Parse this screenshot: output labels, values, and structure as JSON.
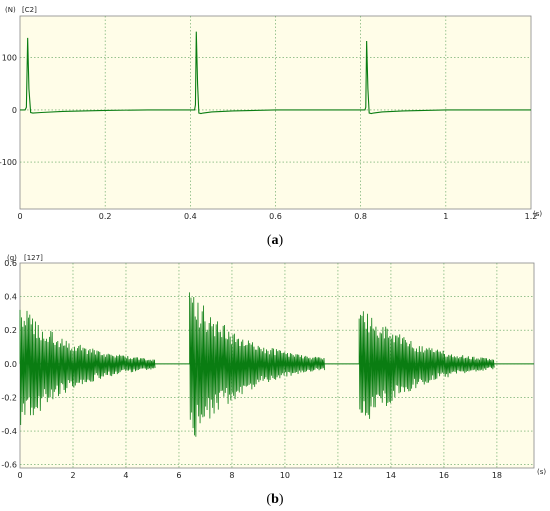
{
  "colors": {
    "plot_bg": "#fffde8",
    "series": "#0a7d12",
    "grid": "#5aa05a",
    "axis": "#888888"
  },
  "chart_data": [
    {
      "type": "line",
      "panel_caption_open": "(",
      "panel_caption_letter": "a",
      "panel_caption_close": ")",
      "y_unit": "(N)",
      "channel": "[C2]",
      "x_unit": "(s)",
      "xlim": [
        0,
        1.2
      ],
      "ylim": [
        -190,
        180
      ],
      "grid": true,
      "x_ticks": [
        0,
        0.2,
        0.4,
        0.6,
        0.8,
        1,
        1.2
      ],
      "x_tick_labels": [
        "0",
        "0.2",
        "0.4",
        "0.6",
        "0.8",
        "1",
        "1.2"
      ],
      "y_ticks": [
        100,
        0,
        -100
      ],
      "y_tick_labels": [
        "100",
        "0",
        "-100"
      ],
      "series": [
        {
          "x": [
            0,
            0.012,
            0.015,
            0.018,
            0.021,
            0.025,
            0.03,
            0.05,
            0.1,
            0.2,
            0.3,
            0.41,
            0.412,
            0.414,
            0.417,
            0.42,
            0.425,
            0.43,
            0.45,
            0.5,
            0.6,
            0.7,
            0.81,
            0.812,
            0.814,
            0.817,
            0.82,
            0.825,
            0.83,
            0.85,
            0.9,
            1.0,
            1.1,
            1.2
          ],
          "y": [
            0,
            0,
            5,
            138,
            40,
            -5,
            -6,
            -5,
            -3,
            -1,
            0,
            0,
            10,
            150,
            50,
            -6,
            -7,
            -6,
            -4,
            -2,
            0,
            0,
            0,
            5,
            132,
            40,
            -6,
            -7,
            -6,
            -4,
            -2,
            0,
            0,
            0
          ]
        }
      ]
    },
    {
      "type": "line",
      "panel_caption_open": "(",
      "panel_caption_letter": "b",
      "panel_caption_close": ")",
      "y_unit": "(g)",
      "channel": "[127]",
      "x_unit": "(s)",
      "xlim": [
        0,
        19.4
      ],
      "ylim": [
        -0.62,
        0.6
      ],
      "grid": true,
      "x_ticks": [
        0,
        2,
        4,
        6,
        8,
        10,
        12,
        14,
        16,
        18
      ],
      "x_tick_labels": [
        "0",
        "2",
        "4",
        "6",
        "8",
        "10",
        "12",
        "14",
        "16",
        "18"
      ],
      "y_ticks": [
        0.6,
        0.4,
        0.2,
        0.0,
        -0.2,
        -0.4,
        -0.6
      ],
      "y_tick_labels": [
        "0.6",
        "0.4",
        "0.2",
        "0.0",
        "-0.2",
        "-0.4",
        "-0.6"
      ],
      "bursts": [
        {
          "start": 0.0,
          "peak_pos": 0.36,
          "peak_neg": -0.42
        },
        {
          "start": 6.4,
          "peak_pos": 0.46,
          "peak_neg": -0.5
        },
        {
          "start": 12.8,
          "peak_pos": 0.38,
          "peak_neg": -0.43
        }
      ],
      "decay_time": 3.2
    }
  ]
}
